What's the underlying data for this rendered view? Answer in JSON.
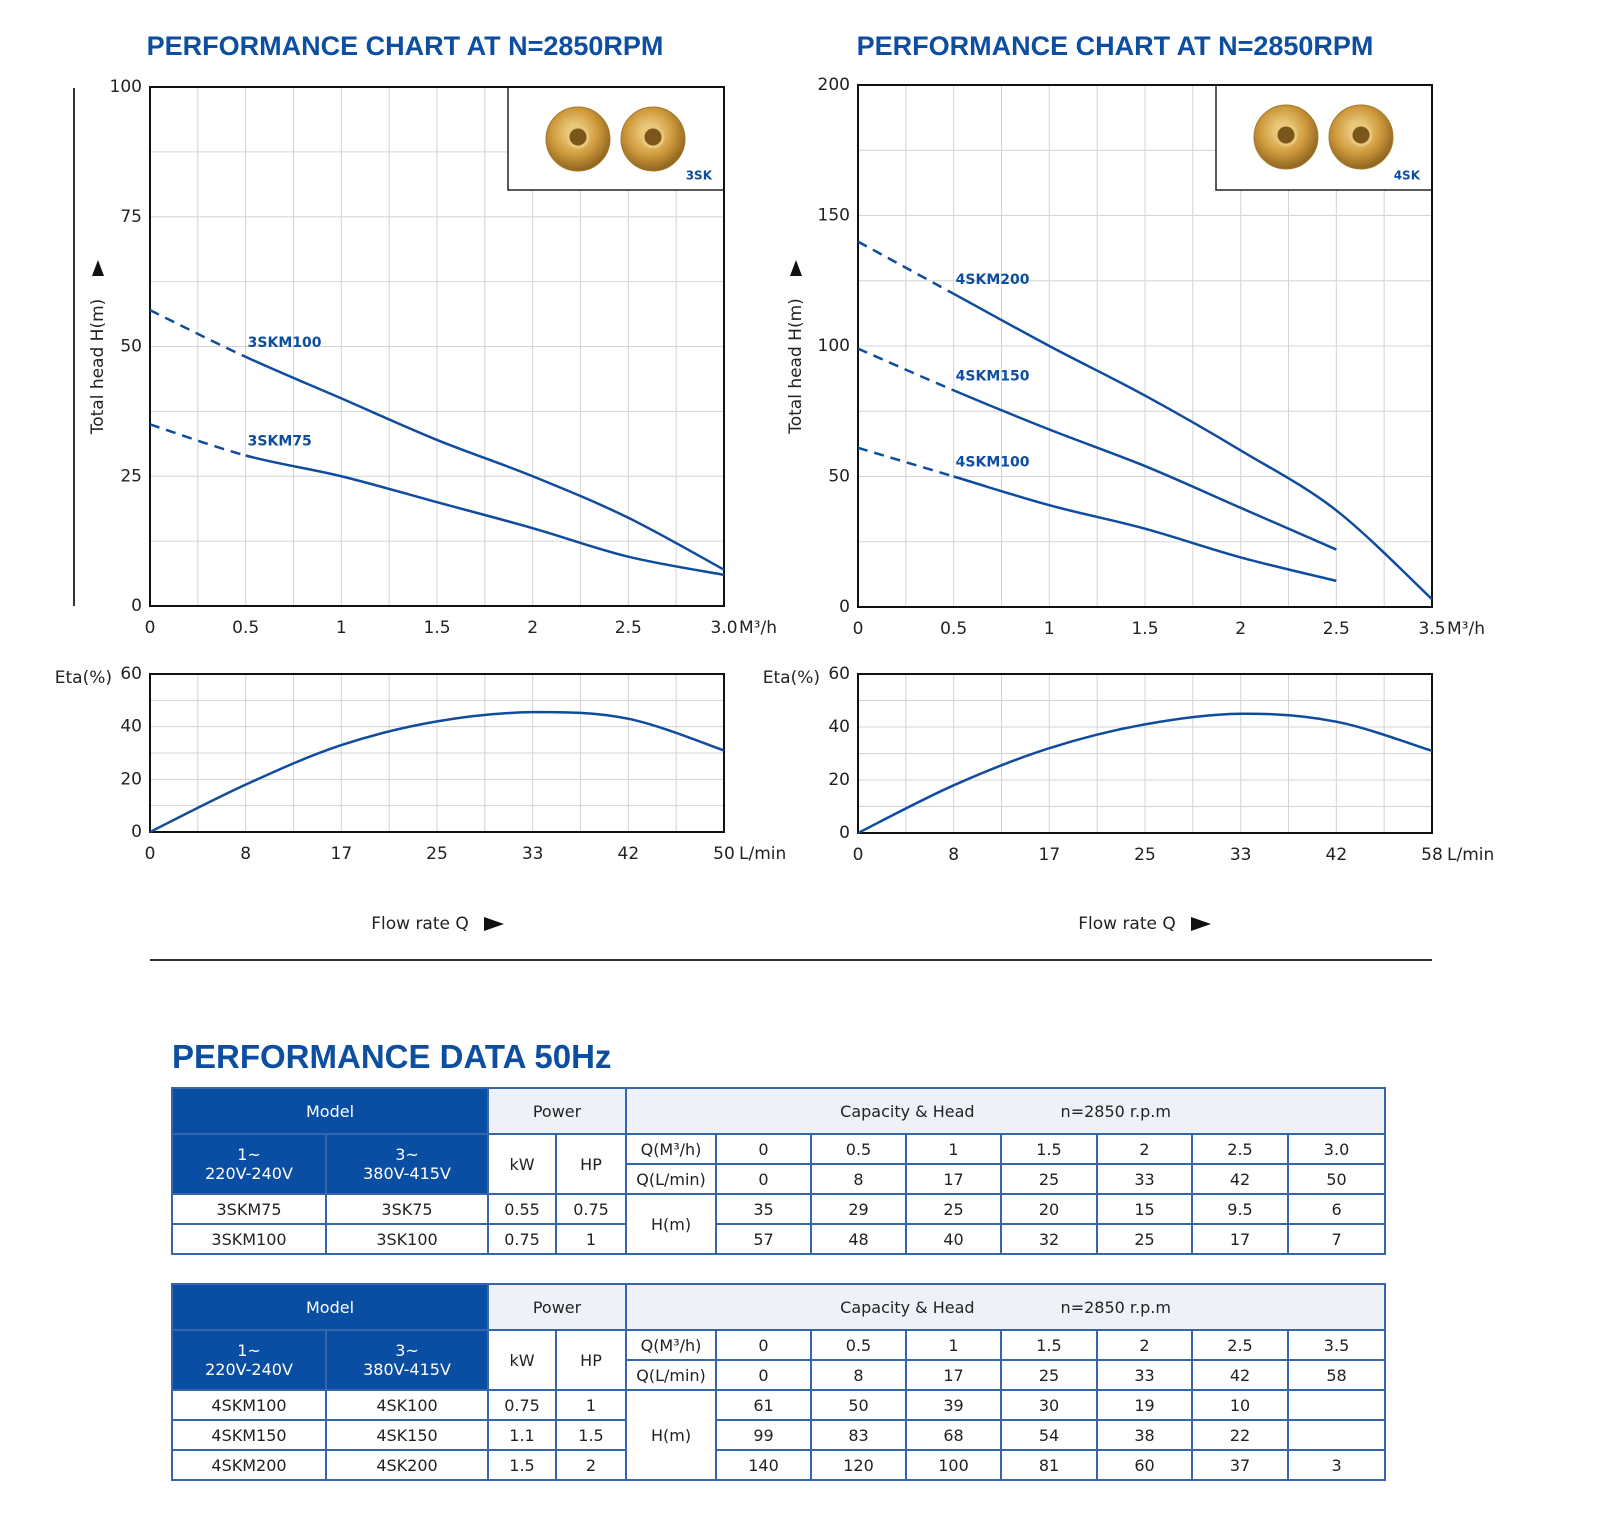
{
  "chart_data": [
    {
      "type": "line",
      "title": "PERFORMANCE CHART AT N=2850RPM",
      "y_label": "Total head H(m)",
      "x_unit": "M³/h",
      "inset_label": "3SK",
      "categories": [
        "0",
        "0.5",
        "1",
        "1.5",
        "2",
        "2.5",
        "3.0"
      ],
      "ylim": [
        0,
        100
      ],
      "yticks": [
        0,
        25,
        50,
        75,
        100
      ],
      "grid": true,
      "series": [
        {
          "name": "3SKM100",
          "color": "#0f4c9e",
          "values": [
            57,
            48,
            40,
            32,
            25,
            17,
            7
          ]
        },
        {
          "name": "3SKM75",
          "color": "#0f4c9e",
          "values": [
            35,
            29,
            25,
            20,
            15,
            9.5,
            6
          ]
        }
      ]
    },
    {
      "type": "line",
      "y_label": "Eta(%)",
      "x_label": "Flow rate Q",
      "x_unit": "L/min",
      "categories": [
        "0",
        "8",
        "17",
        "25",
        "33",
        "42",
        "50"
      ],
      "ylim": [
        0,
        60
      ],
      "yticks": [
        0,
        20,
        40,
        60
      ],
      "grid": true,
      "series": [
        {
          "color": "#0f4c9e",
          "values": [
            0,
            18,
            33,
            42,
            45.5,
            43,
            31
          ]
        }
      ]
    },
    {
      "type": "line",
      "title": "PERFORMANCE CHART AT N=2850RPM",
      "y_label": "Total head H(m)",
      "x_unit": "M³/h",
      "inset_label": "4SK",
      "categories": [
        "0",
        "0.5",
        "1",
        "1.5",
        "2",
        "2.5",
        "3.5"
      ],
      "ylim": [
        0,
        200
      ],
      "yticks": [
        0,
        50,
        100,
        150,
        200
      ],
      "grid": true,
      "series": [
        {
          "name": "4SKM200",
          "color": "#0f4c9e",
          "values": [
            140,
            120,
            100,
            81,
            60,
            37,
            3
          ]
        },
        {
          "name": "4SKM150",
          "color": "#0f4c9e",
          "values": [
            99,
            83,
            68,
            54,
            38,
            22,
            null
          ]
        },
        {
          "name": "4SKM100",
          "color": "#0f4c9e",
          "values": [
            61,
            50,
            39,
            30,
            19,
            10,
            null
          ]
        }
      ]
    },
    {
      "type": "line",
      "y_label": "Eta(%)",
      "x_label": "Flow rate Q",
      "x_unit": "L/min",
      "categories": [
        "0",
        "8",
        "17",
        "25",
        "33",
        "42",
        "58"
      ],
      "ylim": [
        0,
        60
      ],
      "yticks": [
        0,
        20,
        40,
        60
      ],
      "grid": true,
      "series": [
        {
          "color": "#0f4c9e",
          "values": [
            0,
            18,
            32,
            41,
            45,
            42,
            31
          ]
        }
      ]
    }
  ],
  "performance_data": {
    "title": "PERFORMANCE DATA 50Hz",
    "tables": [
      {
        "header": {
          "model": "Model",
          "power": "Power",
          "capacity": "Capacity & Head",
          "speed": "n=2850 r.p.m",
          "single_phase": [
            "1~",
            "220V-240V"
          ],
          "three_phase": [
            "3~",
            "380V-415V"
          ],
          "kw": "kW",
          "hp": "HP",
          "q_m3h": "Q(M³/h)",
          "q_lmin": "Q(L/min)",
          "head": "H(m)",
          "flow_m3h": [
            "0",
            "0.5",
            "1",
            "1.5",
            "2",
            "2.5",
            "3.0"
          ],
          "flow_lmin": [
            "0",
            "8",
            "17",
            "25",
            "33",
            "42",
            "50"
          ]
        },
        "rows": [
          {
            "single": "3SKM75",
            "three": "3SK75",
            "kw": "0.55",
            "hp": "0.75",
            "head": [
              "35",
              "29",
              "25",
              "20",
              "15",
              "9.5",
              "6"
            ]
          },
          {
            "single": "3SKM100",
            "three": "3SK100",
            "kw": "0.75",
            "hp": "1",
            "head": [
              "57",
              "48",
              "40",
              "32",
              "25",
              "17",
              "7"
            ]
          }
        ]
      },
      {
        "header": {
          "model": "Model",
          "power": "Power",
          "capacity": "Capacity & Head",
          "speed": "n=2850 r.p.m",
          "single_phase": [
            "1~",
            "220V-240V"
          ],
          "three_phase": [
            "3~",
            "380V-415V"
          ],
          "kw": "kW",
          "hp": "HP",
          "q_m3h": "Q(M³/h)",
          "q_lmin": "Q(L/min)",
          "head": "H(m)",
          "flow_m3h": [
            "0",
            "0.5",
            "1",
            "1.5",
            "2",
            "2.5",
            "3.5"
          ],
          "flow_lmin": [
            "0",
            "8",
            "17",
            "25",
            "33",
            "42",
            "58"
          ]
        },
        "rows": [
          {
            "single": "4SKM100",
            "three": "4SK100",
            "kw": "0.75",
            "hp": "1",
            "head": [
              "61",
              "50",
              "39",
              "30",
              "19",
              "10",
              null
            ]
          },
          {
            "single": "4SKM150",
            "three": "4SK150",
            "kw": "1.1",
            "hp": "1.5",
            "head": [
              "99",
              "83",
              "68",
              "54",
              "38",
              "22",
              null
            ]
          },
          {
            "single": "4SKM200",
            "three": "4SK200",
            "kw": "1.5",
            "hp": "2",
            "head": [
              "140",
              "120",
              "100",
              "81",
              "60",
              "37",
              "3"
            ]
          }
        ]
      }
    ]
  }
}
